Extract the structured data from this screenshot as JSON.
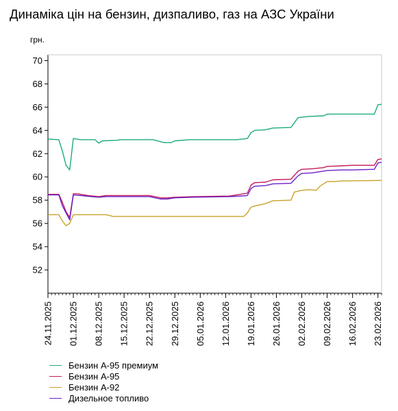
{
  "title": "Динаміка цін на бензин, дизпаливо, газ на АЗС України",
  "chart_data": {
    "type": "line",
    "title": "Динаміка цін на бензин, дизпаливо, газ на АЗС України",
    "ylabel": "грн.",
    "xlabel": "",
    "ylim": [
      50,
      70.5
    ],
    "yticks": [
      52,
      54,
      56,
      58,
      60,
      62,
      64,
      66,
      68,
      70
    ],
    "xlim": [
      "2025-11-24",
      "2026-02-24"
    ],
    "xticks": [
      "24.11.2025",
      "01.12.2025",
      "08.12.2025",
      "15.12.2025",
      "22.12.2025",
      "29.12.2025",
      "05.01.2026",
      "12.01.2026",
      "19.01.2026",
      "26.01.2026",
      "02.02.2026",
      "09.02.2026",
      "16.02.2026",
      "23.02.2026"
    ],
    "grid": false,
    "legend_position": "bottom-left",
    "series": [
      {
        "name": "Бензин А-95 премиум",
        "color": "#1aab7f",
        "points": [
          [
            "2025-11-24",
            63.25
          ],
          [
            "2025-11-27",
            63.2
          ],
          [
            "2025-11-28",
            62.2
          ],
          [
            "2025-11-29",
            61.0
          ],
          [
            "2025-11-30",
            60.6
          ],
          [
            "2025-12-01",
            63.3
          ],
          [
            "2025-12-02",
            63.25
          ],
          [
            "2025-12-03",
            63.2
          ],
          [
            "2025-12-07",
            63.2
          ],
          [
            "2025-12-08",
            62.9
          ],
          [
            "2025-12-09",
            63.1
          ],
          [
            "2025-12-13",
            63.15
          ],
          [
            "2025-12-14",
            63.2
          ],
          [
            "2025-12-22",
            63.2
          ],
          [
            "2025-12-23",
            63.2
          ],
          [
            "2025-12-26",
            62.95
          ],
          [
            "2025-12-28",
            62.95
          ],
          [
            "2025-12-29",
            63.1
          ],
          [
            "2026-01-02",
            63.2
          ],
          [
            "2026-01-15",
            63.2
          ],
          [
            "2026-01-18",
            63.3
          ],
          [
            "2026-01-19",
            63.8
          ],
          [
            "2026-01-20",
            64.0
          ],
          [
            "2026-01-23",
            64.05
          ],
          [
            "2026-01-25",
            64.2
          ],
          [
            "2026-01-30",
            64.25
          ],
          [
            "2026-02-01",
            65.1
          ],
          [
            "2026-02-04",
            65.2
          ],
          [
            "2026-02-08",
            65.25
          ],
          [
            "2026-02-09",
            65.4
          ],
          [
            "2026-02-19",
            65.4
          ],
          [
            "2026-02-22",
            65.4
          ],
          [
            "2026-02-23",
            66.2
          ],
          [
            "2026-02-24",
            66.25
          ]
        ]
      },
      {
        "name": "Бензин А-95",
        "color": "#c41a5b",
        "points": [
          [
            "2025-11-24",
            58.5
          ],
          [
            "2025-11-27",
            58.5
          ],
          [
            "2025-11-28",
            57.8
          ],
          [
            "2025-11-29",
            57.0
          ],
          [
            "2025-11-30",
            56.5
          ],
          [
            "2025-12-01",
            58.55
          ],
          [
            "2025-12-02",
            58.55
          ],
          [
            "2025-12-05",
            58.4
          ],
          [
            "2025-12-08",
            58.3
          ],
          [
            "2025-12-10",
            58.4
          ],
          [
            "2025-12-22",
            58.4
          ],
          [
            "2025-12-25",
            58.2
          ],
          [
            "2025-12-27",
            58.2
          ],
          [
            "2025-12-29",
            58.25
          ],
          [
            "2026-01-03",
            58.3
          ],
          [
            "2026-01-13",
            58.35
          ],
          [
            "2026-01-16",
            58.5
          ],
          [
            "2026-01-18",
            58.6
          ],
          [
            "2026-01-19",
            59.3
          ],
          [
            "2026-01-20",
            59.5
          ],
          [
            "2026-01-23",
            59.55
          ],
          [
            "2026-01-25",
            59.75
          ],
          [
            "2026-01-30",
            59.8
          ],
          [
            "2026-02-01",
            60.5
          ],
          [
            "2026-02-02",
            60.65
          ],
          [
            "2026-02-05",
            60.7
          ],
          [
            "2026-02-08",
            60.8
          ],
          [
            "2026-02-09",
            60.9
          ],
          [
            "2026-02-13",
            60.95
          ],
          [
            "2026-02-16",
            61.0
          ],
          [
            "2026-02-22",
            61.0
          ],
          [
            "2026-02-23",
            61.5
          ],
          [
            "2026-02-24",
            61.55
          ]
        ]
      },
      {
        "name": "Бензин А-92",
        "color": "#c9a227",
        "points": [
          [
            "2025-11-24",
            56.75
          ],
          [
            "2025-11-27",
            56.75
          ],
          [
            "2025-11-28",
            56.2
          ],
          [
            "2025-11-29",
            55.8
          ],
          [
            "2025-11-30",
            56.0
          ],
          [
            "2025-12-01",
            56.75
          ],
          [
            "2025-12-02",
            56.75
          ],
          [
            "2025-12-10",
            56.75
          ],
          [
            "2025-12-12",
            56.6
          ],
          [
            "2025-12-20",
            56.6
          ],
          [
            "2025-12-31",
            56.6
          ],
          [
            "2026-01-10",
            56.6
          ],
          [
            "2026-01-17",
            56.6
          ],
          [
            "2026-01-18",
            56.9
          ],
          [
            "2026-01-19",
            57.4
          ],
          [
            "2026-01-20",
            57.5
          ],
          [
            "2026-01-23",
            57.7
          ],
          [
            "2026-01-25",
            57.95
          ],
          [
            "2026-01-30",
            58.0
          ],
          [
            "2026-01-31",
            58.7
          ],
          [
            "2026-02-02",
            58.85
          ],
          [
            "2026-02-04",
            58.9
          ],
          [
            "2026-02-06",
            58.85
          ],
          [
            "2026-02-07",
            59.2
          ],
          [
            "2026-02-09",
            59.6
          ],
          [
            "2026-02-11",
            59.6
          ],
          [
            "2026-02-13",
            59.65
          ],
          [
            "2026-02-24",
            59.7
          ]
        ]
      },
      {
        "name": "Дизельное топливо",
        "color": "#6a1fc9",
        "points": [
          [
            "2025-11-24",
            58.45
          ],
          [
            "2025-11-27",
            58.45
          ],
          [
            "2025-11-28",
            57.5
          ],
          [
            "2025-11-29",
            56.9
          ],
          [
            "2025-11-30",
            56.3
          ],
          [
            "2025-12-01",
            58.45
          ],
          [
            "2025-12-03",
            58.4
          ],
          [
            "2025-12-06",
            58.3
          ],
          [
            "2025-12-08",
            58.25
          ],
          [
            "2025-12-10",
            58.3
          ],
          [
            "2025-12-22",
            58.3
          ],
          [
            "2025-12-25",
            58.1
          ],
          [
            "2025-12-27",
            58.1
          ],
          [
            "2025-12-29",
            58.2
          ],
          [
            "2026-01-03",
            58.25
          ],
          [
            "2026-01-13",
            58.3
          ],
          [
            "2026-01-16",
            58.35
          ],
          [
            "2026-01-18",
            58.4
          ],
          [
            "2026-01-19",
            59.0
          ],
          [
            "2026-01-20",
            59.2
          ],
          [
            "2026-01-23",
            59.25
          ],
          [
            "2026-01-25",
            59.4
          ],
          [
            "2026-01-30",
            59.45
          ],
          [
            "2026-02-01",
            60.1
          ],
          [
            "2026-02-02",
            60.3
          ],
          [
            "2026-02-05",
            60.35
          ],
          [
            "2026-02-08",
            60.5
          ],
          [
            "2026-02-09",
            60.55
          ],
          [
            "2026-02-13",
            60.6
          ],
          [
            "2026-02-16",
            60.6
          ],
          [
            "2026-02-22",
            60.65
          ],
          [
            "2026-02-23",
            61.2
          ],
          [
            "2026-02-24",
            61.25
          ]
        ]
      }
    ]
  }
}
